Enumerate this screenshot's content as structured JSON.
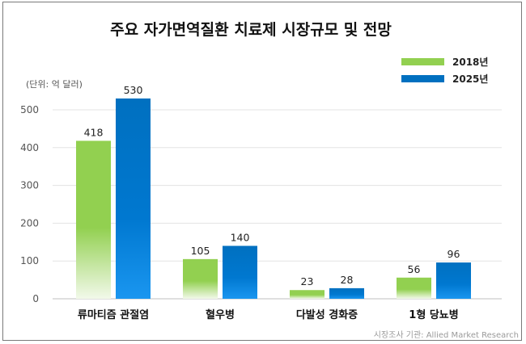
{
  "title": "주요 자가면역질환 치료제 시장규모 및 전망",
  "unit_note": "(단위: 억 달러)",
  "source_note": "시장조사 기관: Allied Market Research",
  "colors": {
    "s2018": "#92d050",
    "s2025": "#0070c0"
  },
  "chart_data": {
    "type": "bar",
    "title": "주요 자가면역질환 치료제 시장규모 및 전망",
    "categories": [
      "류마티즘 관절염",
      "혈우병",
      "다발성 경화증",
      "1형 당뇨병"
    ],
    "series": [
      {
        "name": "2018년",
        "values": [
          418,
          105,
          23,
          56
        ],
        "labels": [
          "418",
          "105",
          "23",
          "56"
        ]
      },
      {
        "name": "2025년",
        "values": [
          530,
          140,
          28,
          96
        ],
        "labels": [
          "530",
          "140",
          "28",
          "96"
        ]
      }
    ],
    "yticks": [
      0,
      100,
      200,
      300,
      400,
      500
    ],
    "ylim": [
      0,
      600
    ],
    "grid": true,
    "legend_position": "top-right"
  }
}
